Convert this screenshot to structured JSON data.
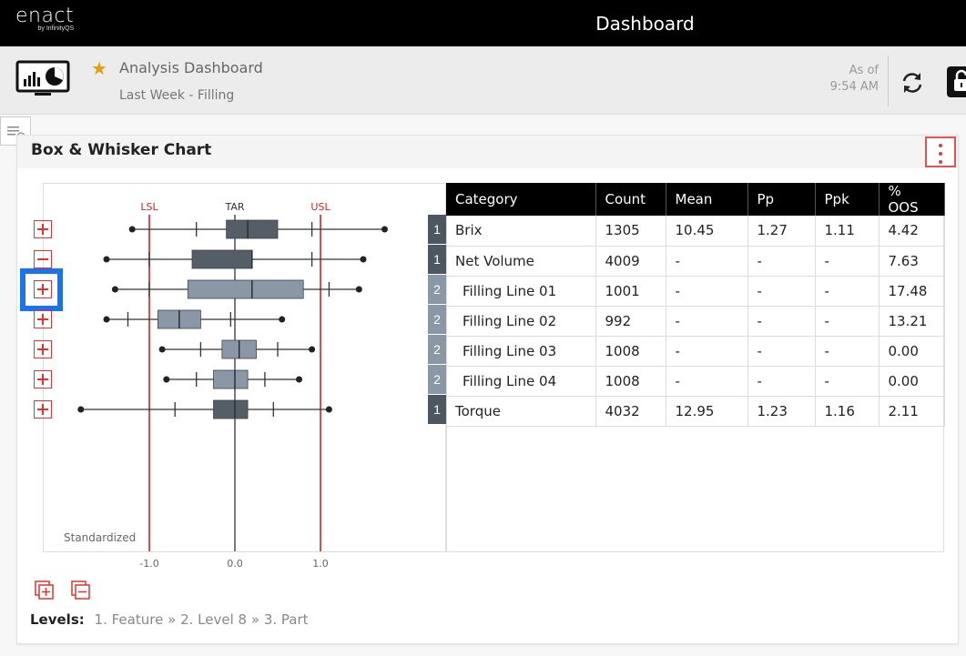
{
  "topbar": {
    "logo": "enact",
    "logo_sub": "by InfinityQS",
    "title": "Dashboard"
  },
  "header": {
    "dashboard_title": "Analysis Dashboard",
    "subtitle": "Last Week - Filling",
    "as_of_label": "As of",
    "as_of_time": "9:54 AM"
  },
  "panel": {
    "title": "Box & Whisker Chart"
  },
  "chart_data": {
    "type": "box",
    "title": "",
    "reference_lines": [
      {
        "label": "LSL",
        "value": -1.0,
        "color": "#d42020"
      },
      {
        "label": "TAR",
        "value": 0.0,
        "color": "#333333"
      },
      {
        "label": "USL",
        "value": 1.0,
        "color": "#d42020"
      }
    ],
    "x_ticks": [
      "-1.0",
      "0.0",
      "1.0"
    ],
    "xlim": [
      -1.5,
      1.95
    ],
    "annotation": "Standardized",
    "series": [
      {
        "category": "Brix",
        "min": -1.2,
        "p5": -0.45,
        "q1": -0.1,
        "median": 0.15,
        "q3": 0.5,
        "p95": 0.9,
        "max": 1.75,
        "color": "#555d66"
      },
      {
        "category": "Net Volume",
        "min": -1.5,
        "p5": -1.0,
        "q1": -0.5,
        "median": 0.2,
        "q3": 0.2,
        "p95": 0.9,
        "max": 1.5,
        "color": "#555d66"
      },
      {
        "category": "Filling Line 01",
        "min": -1.4,
        "p5": -1.0,
        "q1": -0.55,
        "median": 0.2,
        "q3": 0.8,
        "p95": 1.1,
        "max": 1.45,
        "color": "#8a97a6"
      },
      {
        "category": "Filling Line 02",
        "min": -1.5,
        "p5": -1.25,
        "q1": -0.9,
        "median": -0.65,
        "q3": -0.4,
        "p95": -0.05,
        "max": 0.55,
        "color": "#8a97a6"
      },
      {
        "category": "Filling Line 03",
        "min": -0.85,
        "p5": -0.4,
        "q1": -0.15,
        "median": 0.05,
        "q3": 0.25,
        "p95": 0.5,
        "max": 0.9,
        "color": "#8a97a6"
      },
      {
        "category": "Filling Line 04",
        "min": -0.8,
        "p5": -0.45,
        "q1": -0.25,
        "median": 0.0,
        "q3": 0.15,
        "p95": 0.35,
        "max": 0.75,
        "color": "#8a97a6"
      },
      {
        "category": "Torque",
        "min": -1.8,
        "p5": -0.7,
        "q1": -0.25,
        "median": 0.0,
        "q3": 0.15,
        "p95": 0.45,
        "max": 1.1,
        "color": "#555d66"
      }
    ]
  },
  "row_toggles": [
    "plus",
    "minus",
    "plus",
    "plus",
    "plus",
    "plus",
    "plus"
  ],
  "table": {
    "headers": [
      "Category",
      "Count",
      "Mean",
      "Pp",
      "Ppk",
      "% OOS"
    ],
    "rows": [
      {
        "level": "1",
        "category": "Brix",
        "count": "1305",
        "mean": "10.45",
        "pp": "1.27",
        "ppk": "1.11",
        "oos": "4.42"
      },
      {
        "level": "1",
        "category": "Net Volume",
        "count": "4009",
        "mean": "-",
        "pp": "-",
        "ppk": "-",
        "oos": "7.63"
      },
      {
        "level": "2",
        "category": "Filling Line 01",
        "count": "1001",
        "mean": "-",
        "pp": "-",
        "ppk": "-",
        "oos": "17.48"
      },
      {
        "level": "2",
        "category": "Filling Line 02",
        "count": "992",
        "mean": "-",
        "pp": "-",
        "ppk": "-",
        "oos": "13.21"
      },
      {
        "level": "2",
        "category": "Filling Line 03",
        "count": "1008",
        "mean": "-",
        "pp": "-",
        "ppk": "-",
        "oos": "0.00"
      },
      {
        "level": "2",
        "category": "Filling Line 04",
        "count": "1008",
        "mean": "-",
        "pp": "-",
        "ppk": "-",
        "oos": "0.00"
      },
      {
        "level": "1",
        "category": "Torque",
        "count": "4032",
        "mean": "12.95",
        "pp": "1.23",
        "ppk": "1.16",
        "oos": "2.11"
      }
    ]
  },
  "levels": {
    "label": "Levels:",
    "items": [
      "1. Feature",
      "2. Level 8",
      "3. Part"
    ],
    "separator": "»"
  },
  "icons": [
    "star-icon",
    "monitor-chart-icon",
    "refresh-icon",
    "lock-icon",
    "sidebar-toggle-icon",
    "kebab-menu-icon",
    "expand-all-icon",
    "collapse-all-icon"
  ]
}
